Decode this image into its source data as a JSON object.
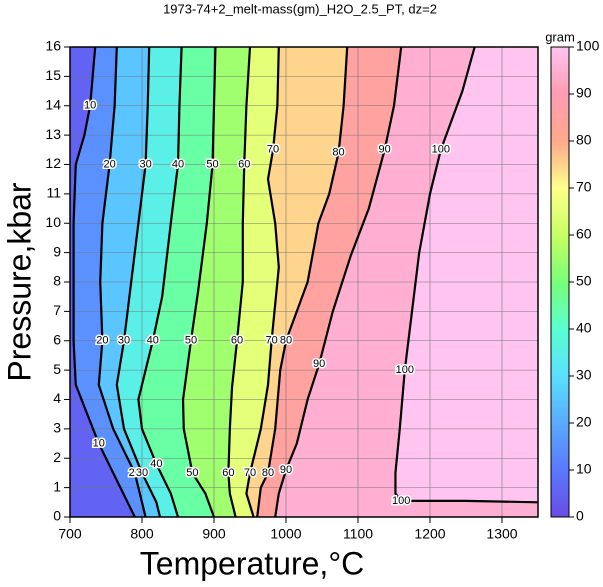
{
  "chart_data": {
    "type": "contour",
    "title": "1973-74+2_melt-mass(gm)_H2O_2.5_PT, dz=2",
    "xlabel": "Temperature,°C",
    "ylabel": "Pressure,kbar",
    "xlim": [
      700,
      1350
    ],
    "ylim": [
      0,
      16
    ],
    "xticks": [
      700,
      800,
      900,
      1000,
      1100,
      1200,
      1300
    ],
    "yticks": [
      0,
      1,
      2,
      3,
      4,
      5,
      6,
      7,
      8,
      9,
      10,
      11,
      12,
      13,
      14,
      15,
      16
    ],
    "grid": true,
    "colormap": [
      "#6a4ce6",
      "#5a78ff",
      "#5aaaff",
      "#5ae0ff",
      "#5affd0",
      "#78ff78",
      "#c8ff64",
      "#ffff8c",
      "#ffa88c",
      "#ff9cb4",
      "#ffc4f0"
    ],
    "colorbar": {
      "label": "gram",
      "lim": [
        0,
        100
      ],
      "ticks": [
        0,
        10,
        20,
        30,
        40,
        50,
        60,
        70,
        80,
        90,
        100
      ]
    },
    "contours": [
      {
        "level": 10,
        "x": [
          735,
          728,
          720,
          708,
          705,
          705,
          708,
          740,
          770,
          790
        ],
        "y": [
          16,
          14,
          13,
          12,
          10,
          6,
          4.5,
          2.5,
          1,
          0
        ]
      },
      {
        "level": 20,
        "x": [
          765,
          762,
          755,
          745,
          742,
          745,
          740,
          760,
          790,
          800,
          805
        ],
        "y": [
          16,
          14,
          12,
          10,
          8,
          6,
          4.5,
          3,
          1.5,
          0.5,
          0
        ]
      },
      {
        "level": 30,
        "x": [
          810,
          808,
          805,
          795,
          785,
          775,
          765,
          775,
          800,
          820,
          825
        ],
        "y": [
          16,
          14,
          12,
          10,
          8,
          6,
          4.5,
          3,
          1.5,
          0.5,
          0
        ]
      },
      {
        "level": 40,
        "x": [
          855,
          852,
          850,
          840,
          828,
          815,
          795,
          800,
          820,
          840,
          850
        ],
        "y": [
          16,
          14,
          12,
          10,
          7.5,
          6,
          4,
          3,
          1.8,
          0.8,
          0
        ]
      },
      {
        "level": 50,
        "x": [
          902,
          900,
          898,
          890,
          878,
          868,
          857,
          858,
          870,
          888,
          900
        ],
        "y": [
          16,
          14,
          12,
          10,
          7.7,
          6,
          4,
          3,
          1.5,
          0.8,
          0
        ]
      },
      {
        "level": 60,
        "x": [
          950,
          945,
          942,
          940,
          940,
          932,
          925,
          922,
          920,
          922,
          930
        ],
        "y": [
          16,
          14,
          12,
          10,
          8,
          6,
          4.4,
          3,
          1.5,
          0.8,
          0
        ]
      },
      {
        "level": 70,
        "x": [
          990,
          988,
          982,
          975,
          985,
          990,
          980,
          975,
          965,
          950,
          945,
          955
        ],
        "y": [
          16,
          14,
          12.5,
          11.5,
          10,
          8.5,
          6,
          4.5,
          3,
          1.5,
          0.8,
          0
        ]
      },
      {
        "level": 80,
        "x": [
          1085,
          1080,
          1073,
          1060,
          1045,
          1030,
          1000,
          992,
          985,
          975,
          965,
          960
        ],
        "y": [
          16,
          14,
          12.4,
          11,
          10,
          8,
          6,
          5,
          3,
          1.5,
          1,
          0
        ]
      },
      {
        "level": 90,
        "x": [
          1160,
          1150,
          1137,
          1115,
          1090,
          1065,
          1046,
          1030,
          1015,
          1000,
          990,
          985
        ],
        "y": [
          16,
          14,
          12.5,
          10.5,
          8.9,
          7,
          5.2,
          4,
          2.5,
          1.6,
          0.8,
          0
        ]
      },
      {
        "level": 100,
        "x": [
          1262,
          1245,
          1215,
          1200,
          1185,
          1175,
          1165,
          1158,
          1152,
          1152,
          1160,
          1250,
          1350
        ],
        "y": [
          16,
          14.5,
          12.5,
          11,
          9,
          7,
          5,
          3,
          1.5,
          0.8,
          0.55,
          0.55,
          0.5
        ]
      }
    ]
  }
}
